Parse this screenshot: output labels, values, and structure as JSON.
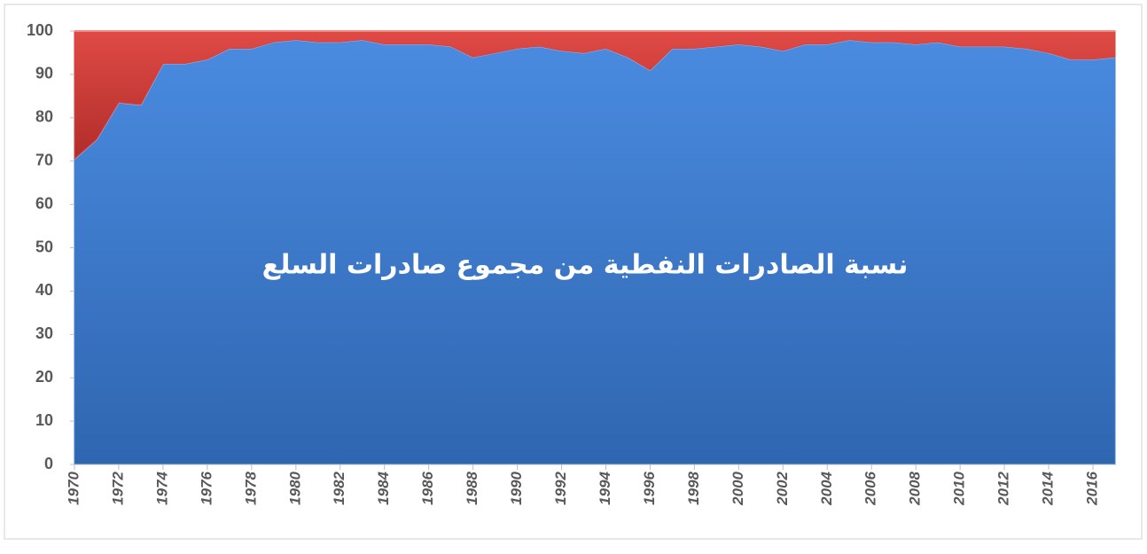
{
  "chart_data": {
    "type": "stacked-area",
    "title": "نسبة الصادرات النفطية من مجموع صادرات السلع",
    "x": [
      1970,
      1971,
      1972,
      1973,
      1974,
      1975,
      1976,
      1977,
      1978,
      1979,
      1980,
      1981,
      1982,
      1983,
      1984,
      1985,
      1986,
      1987,
      1988,
      1989,
      1990,
      1991,
      1992,
      1993,
      1994,
      1995,
      1996,
      1997,
      1998,
      1999,
      2000,
      2001,
      2002,
      2003,
      2004,
      2005,
      2006,
      2007,
      2008,
      2009,
      2010,
      2011,
      2012,
      2013,
      2014,
      2015,
      2016,
      2017
    ],
    "series": [
      {
        "color": "#3f80d2",
        "values": [
          70.5,
          75,
          83.5,
          83,
          92.5,
          92.5,
          93.5,
          96,
          96,
          97.5,
          98,
          97.5,
          97.5,
          98,
          97,
          97,
          97,
          96.5,
          94,
          95,
          96,
          96.5,
          95.5,
          95,
          96,
          94,
          91,
          96,
          96,
          96.5,
          97,
          96.5,
          95.5,
          97,
          97,
          98,
          97.5,
          97.5,
          97,
          97.5,
          96.5,
          96.5,
          96.5,
          96,
          95,
          93.5,
          93.5,
          94
        ]
      },
      {
        "color": "#d9403d",
        "values": [
          29.5,
          25,
          16.5,
          17,
          7.5,
          7.5,
          6.5,
          4,
          4,
          2.5,
          2,
          2.5,
          2.5,
          2,
          3,
          3,
          3,
          3.5,
          6,
          5,
          4,
          3.5,
          4.5,
          5,
          4,
          6,
          9,
          4,
          4,
          3.5,
          3,
          3.5,
          4.5,
          3,
          3,
          2,
          2.5,
          2.5,
          3,
          2.5,
          3.5,
          3.5,
          3.5,
          4,
          5,
          6.5,
          6.5,
          6
        ]
      }
    ],
    "xlim": [
      1970,
      2017
    ],
    "xticks": [
      1970,
      1972,
      1974,
      1976,
      1978,
      1980,
      1982,
      1984,
      1986,
      1988,
      1990,
      1992,
      1994,
      1996,
      1998,
      2000,
      2002,
      2004,
      2006,
      2008,
      2010,
      2012,
      2014,
      2016
    ],
    "ylim": [
      0,
      100
    ],
    "yticks": [
      0,
      10,
      20,
      30,
      40,
      50,
      60,
      70,
      80,
      90,
      100
    ]
  }
}
